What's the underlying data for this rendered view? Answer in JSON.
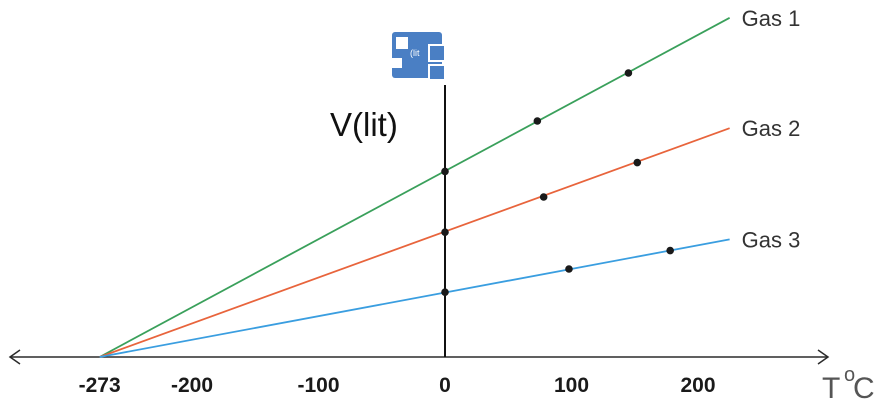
{
  "chart_data": {
    "type": "line",
    "xlabel": "T",
    "xlabel_sup": "o",
    "xlabel_unit": "C",
    "ylabel": "V(lit)",
    "xlim": [
      -300,
      340
    ],
    "x_ticks": [
      -273,
      -200,
      -100,
      0,
      100,
      200
    ],
    "x_tick_labels": [
      "-273",
      "-200",
      "-100",
      "0",
      "100",
      "200"
    ],
    "grid": false,
    "series": [
      {
        "name": "Gas 1",
        "color": "#3aa05b",
        "line_x": [
          -273,
          225
        ],
        "line_y": [
          0,
          4.24
        ],
        "points_x": [
          0,
          73,
          145
        ],
        "points_y": [
          2.32,
          2.95,
          3.55
        ]
      },
      {
        "name": "Gas 2",
        "color": "#e8643c",
        "line_x": [
          -273,
          225
        ],
        "line_y": [
          0,
          2.86
        ],
        "points_x": [
          0,
          78,
          152
        ],
        "points_y": [
          1.56,
          2.0,
          2.43
        ]
      },
      {
        "name": "Gas 3",
        "color": "#3a9ee0",
        "line_x": [
          -273,
          225
        ],
        "line_y": [
          0,
          1.47
        ],
        "points_x": [
          0,
          98,
          178
        ],
        "points_y": [
          0.81,
          1.1,
          1.33
        ]
      }
    ]
  },
  "icon": {
    "name": "embedded-object-icon",
    "text": "(lit"
  }
}
